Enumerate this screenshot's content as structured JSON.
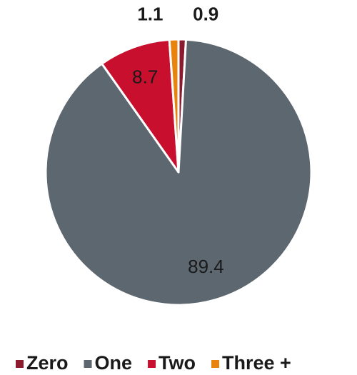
{
  "chart_data": {
    "type": "pie",
    "categories": [
      "Zero",
      "One",
      "Two",
      "Three +"
    ],
    "values": [
      0.9,
      89.4,
      8.7,
      1.1
    ],
    "colors": [
      "#8b1a2e",
      "#5d6770",
      "#c8102e",
      "#e8830e"
    ],
    "legend": "bottom"
  }
}
